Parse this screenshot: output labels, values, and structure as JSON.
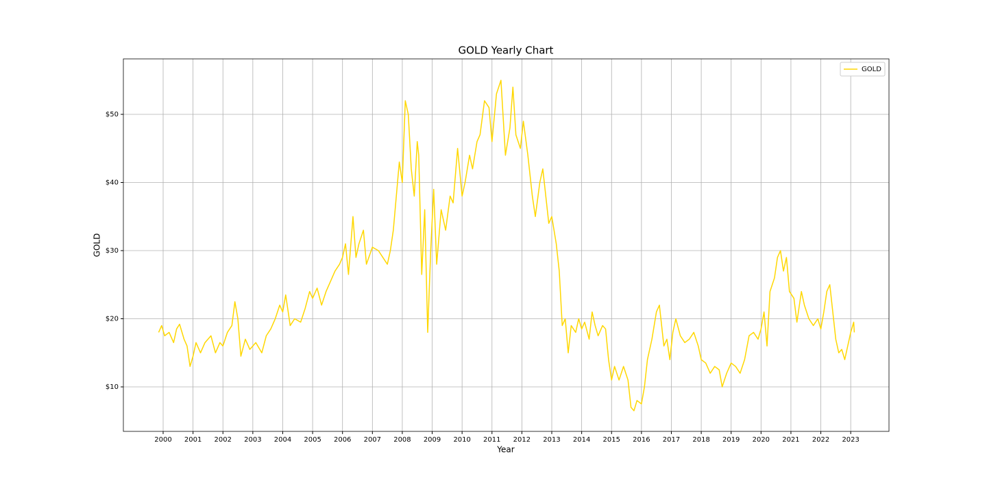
{
  "chart_data": {
    "type": "line",
    "title": "GOLD Yearly Chart",
    "x_label": "Year",
    "y_label": "GOLD",
    "xlim": [
      1998.67,
      2024.28
    ],
    "ylim": [
      3.47,
      58.14
    ],
    "xticks": [
      2000,
      2001,
      2002,
      2003,
      2004,
      2005,
      2006,
      2007,
      2008,
      2009,
      2010,
      2011,
      2012,
      2013,
      2014,
      2015,
      2016,
      2017,
      2018,
      2019,
      2020,
      2021,
      2022,
      2023
    ],
    "yticks": [
      {
        "value": 10,
        "label": "$10"
      },
      {
        "value": 20,
        "label": "$20"
      },
      {
        "value": 30,
        "label": "$30"
      },
      {
        "value": 40,
        "label": "$40"
      },
      {
        "value": 50,
        "label": "$50"
      }
    ],
    "grid": true,
    "legend": "upper right",
    "x": [
      1999.85,
      1999.95,
      2000.05,
      2000.2,
      2000.35,
      2000.45,
      2000.55,
      2000.7,
      2000.8,
      2000.9,
      2001.0,
      2001.1,
      2001.25,
      2001.4,
      2001.6,
      2001.75,
      2001.9,
      2002.0,
      2002.15,
      2002.3,
      2002.4,
      2002.5,
      2002.6,
      2002.75,
      2002.9,
      2003.1,
      2003.3,
      2003.45,
      2003.6,
      2003.75,
      2003.9,
      2004.0,
      2004.1,
      2004.25,
      2004.4,
      2004.6,
      2004.75,
      2004.9,
      2005.0,
      2005.15,
      2005.3,
      2005.45,
      2005.6,
      2005.75,
      2005.9,
      2006.0,
      2006.1,
      2006.2,
      2006.35,
      2006.45,
      2006.55,
      2006.7,
      2006.8,
      2007.0,
      2007.2,
      2007.35,
      2007.5,
      2007.6,
      2007.7,
      2007.8,
      2007.9,
      2008.0,
      2008.1,
      2008.2,
      2008.3,
      2008.4,
      2008.5,
      2008.55,
      2008.65,
      2008.75,
      2008.85,
      2008.95,
      2009.05,
      2009.15,
      2009.3,
      2009.45,
      2009.6,
      2009.7,
      2009.85,
      2010.0,
      2010.1,
      2010.25,
      2010.35,
      2010.5,
      2010.6,
      2010.75,
      2010.9,
      2011.0,
      2011.15,
      2011.3,
      2011.45,
      2011.6,
      2011.7,
      2011.8,
      2011.95,
      2012.05,
      2012.2,
      2012.35,
      2012.45,
      2012.6,
      2012.7,
      2012.8,
      2012.9,
      2013.0,
      2013.15,
      2013.25,
      2013.35,
      2013.45,
      2013.55,
      2013.65,
      2013.8,
      2013.9,
      2014.0,
      2014.1,
      2014.25,
      2014.35,
      2014.45,
      2014.55,
      2014.7,
      2014.8,
      2014.9,
      2015.0,
      2015.1,
      2015.25,
      2015.4,
      2015.55,
      2015.65,
      2015.75,
      2015.85,
      2016.0,
      2016.1,
      2016.2,
      2016.35,
      2016.5,
      2016.6,
      2016.75,
      2016.85,
      2016.95,
      2017.05,
      2017.15,
      2017.3,
      2017.45,
      2017.6,
      2017.75,
      2017.9,
      2018.0,
      2018.15,
      2018.3,
      2018.45,
      2018.6,
      2018.7,
      2018.85,
      2019.0,
      2019.15,
      2019.3,
      2019.45,
      2019.6,
      2019.75,
      2019.9,
      2020.0,
      2020.1,
      2020.2,
      2020.3,
      2020.45,
      2020.55,
      2020.65,
      2020.75,
      2020.85,
      2020.95,
      2021.1,
      2021.2,
      2021.35,
      2021.45,
      2021.6,
      2021.75,
      2021.9,
      2022.0,
      2022.1,
      2022.2,
      2022.3,
      2022.4,
      2022.5,
      2022.6,
      2022.7,
      2022.8,
      2022.9,
      2023.0,
      2023.1,
      2023.12
    ],
    "series": [
      {
        "name": "GOLD",
        "color": "#ffd700",
        "values": [
          18,
          19,
          17.5,
          18,
          16.5,
          18.5,
          19.2,
          17,
          16,
          13,
          14.5,
          16.5,
          15,
          16.5,
          17.5,
          15,
          16.5,
          16,
          18,
          19,
          22.5,
          20,
          14.5,
          17,
          15.5,
          16.5,
          15,
          17.5,
          18.5,
          20,
          22,
          21,
          23.5,
          19,
          20,
          19.5,
          21.5,
          24,
          23,
          24.5,
          22,
          24,
          25.5,
          27,
          28,
          29,
          31,
          26.5,
          35,
          29,
          31,
          33,
          28,
          30.5,
          30,
          29,
          28,
          30,
          33,
          38,
          43,
          40,
          52,
          50,
          42,
          38,
          46,
          44,
          26.5,
          36,
          18,
          30,
          39,
          28,
          36,
          33,
          38,
          37,
          45,
          38,
          40,
          44,
          42,
          46,
          47,
          52,
          51,
          46,
          53,
          55,
          44,
          48,
          54,
          47,
          45,
          49,
          44,
          38,
          35,
          40,
          42,
          38,
          34,
          35,
          31,
          27,
          19,
          20,
          15,
          19,
          18,
          20,
          18.5,
          19.5,
          17,
          21,
          19,
          17.5,
          19,
          18.5,
          14,
          11,
          13,
          11,
          13,
          11,
          7,
          6.5,
          8,
          7.5,
          10,
          14,
          17,
          21,
          22,
          16,
          17,
          14,
          18,
          20,
          17.5,
          16.5,
          17,
          18,
          16,
          14,
          13.5,
          12,
          13,
          12.5,
          10,
          12,
          13.5,
          13,
          12,
          14,
          17.5,
          18,
          17,
          18.5,
          21,
          16,
          24,
          26,
          29,
          30,
          27,
          29,
          24,
          23,
          19.5,
          24,
          22,
          20,
          19,
          20,
          18.5,
          21,
          24,
          25,
          21,
          17,
          15,
          15.5,
          14,
          16,
          18,
          19.5,
          18
        ]
      }
    ]
  }
}
